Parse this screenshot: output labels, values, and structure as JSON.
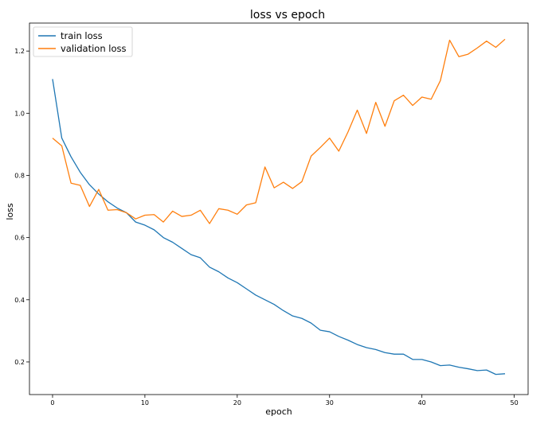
{
  "chart_data": {
    "type": "line",
    "title": "loss vs epoch",
    "xlabel": "epoch",
    "ylabel": "loss",
    "xlim": [
      -2.5,
      51.5
    ],
    "ylim": [
      0.095,
      1.29
    ],
    "xticks": [
      0,
      10,
      20,
      30,
      40,
      50
    ],
    "yticks": [
      0.2,
      0.4,
      0.6,
      0.8,
      1.0,
      1.2
    ],
    "grid": false,
    "legend": "top-left",
    "x": [
      0,
      1,
      2,
      3,
      4,
      5,
      6,
      7,
      8,
      9,
      10,
      11,
      12,
      13,
      14,
      15,
      16,
      17,
      18,
      19,
      20,
      21,
      22,
      23,
      24,
      25,
      26,
      27,
      28,
      29,
      30,
      31,
      32,
      33,
      34,
      35,
      36,
      37,
      38,
      39,
      40,
      41,
      42,
      43,
      44,
      45,
      46,
      47,
      48,
      49
    ],
    "series": [
      {
        "name": "train loss",
        "color": "#1f77b4",
        "values": [
          1.11,
          0.92,
          0.86,
          0.81,
          0.77,
          0.74,
          0.715,
          0.695,
          0.68,
          0.65,
          0.64,
          0.625,
          0.6,
          0.585,
          0.565,
          0.545,
          0.535,
          0.505,
          0.49,
          0.47,
          0.455,
          0.435,
          0.415,
          0.4,
          0.385,
          0.365,
          0.348,
          0.34,
          0.325,
          0.302,
          0.297,
          0.282,
          0.27,
          0.256,
          0.246,
          0.24,
          0.23,
          0.225,
          0.225,
          0.208,
          0.208,
          0.2,
          0.188,
          0.19,
          0.183,
          0.178,
          0.172,
          0.174,
          0.16,
          0.162
        ]
      },
      {
        "name": "validation loss",
        "color": "#ff7f0e",
        "values": [
          0.92,
          0.895,
          0.775,
          0.768,
          0.7,
          0.755,
          0.688,
          0.69,
          0.68,
          0.66,
          0.672,
          0.674,
          0.65,
          0.685,
          0.668,
          0.672,
          0.688,
          0.645,
          0.693,
          0.688,
          0.675,
          0.705,
          0.712,
          0.827,
          0.76,
          0.778,
          0.758,
          0.78,
          0.862,
          0.89,
          0.92,
          0.878,
          0.94,
          1.01,
          0.935,
          1.035,
          0.958,
          1.04,
          1.058,
          1.025,
          1.052,
          1.045,
          1.105,
          1.235,
          1.182,
          1.19,
          1.21,
          1.232,
          1.212,
          1.238
        ]
      }
    ]
  }
}
